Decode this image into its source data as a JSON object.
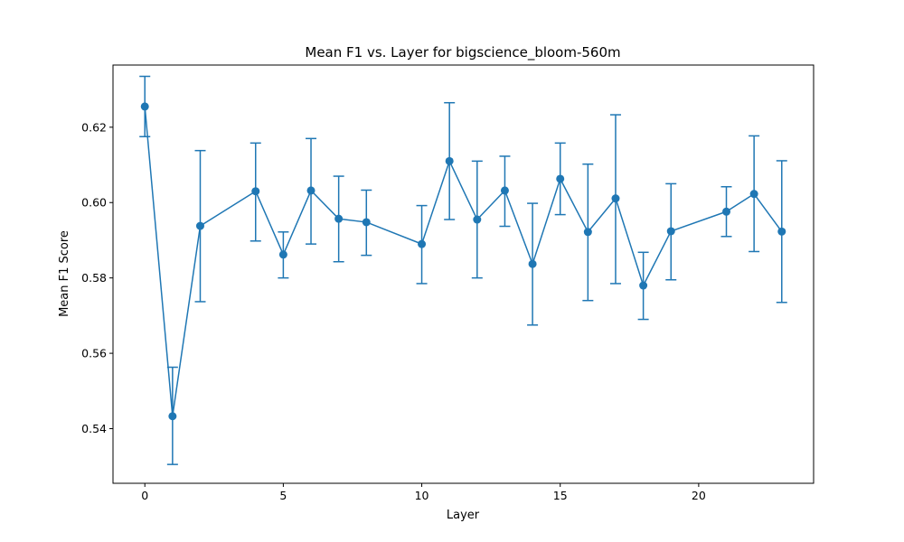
{
  "chart_data": {
    "type": "line",
    "title": "Mean F1 vs. Layer for bigscience_bloom-560m",
    "xlabel": "Layer",
    "ylabel": "Mean F1 Score",
    "xlim": [
      -1.15,
      24.15
    ],
    "ylim": [
      0.5255,
      0.6365
    ],
    "xticks": [
      0,
      5,
      10,
      15,
      20
    ],
    "yticks": [
      0.54,
      0.56,
      0.58,
      0.6,
      0.62
    ],
    "ytick_labels": [
      "0.54",
      "0.56",
      "0.58",
      "0.60",
      "0.62"
    ],
    "grid": false,
    "color": "#1f77b4",
    "series": [
      {
        "x": [
          0,
          1,
          2,
          4,
          5,
          6,
          7,
          8,
          10,
          11,
          12,
          13,
          14,
          15,
          16,
          17,
          18,
          19,
          21,
          22,
          23
        ],
        "y": [
          0.6255,
          0.5433,
          0.5938,
          0.603,
          0.5862,
          0.6032,
          0.5957,
          0.5948,
          0.589,
          0.611,
          0.5955,
          0.6032,
          0.5837,
          0.6063,
          0.5922,
          0.6011,
          0.578,
          0.5924,
          0.5976,
          0.6023,
          0.5923
        ],
        "y_low": [
          0.6175,
          0.5305,
          0.5737,
          0.5898,
          0.58,
          0.589,
          0.5843,
          0.586,
          0.5785,
          0.5955,
          0.58,
          0.5937,
          0.5675,
          0.5968,
          0.574,
          0.5785,
          0.569,
          0.5795,
          0.591,
          0.587,
          0.5735
        ],
        "y_high": [
          0.6335,
          0.5563,
          0.6138,
          0.6158,
          0.5922,
          0.617,
          0.607,
          0.6033,
          0.5992,
          0.6265,
          0.611,
          0.6123,
          0.5998,
          0.6158,
          0.6102,
          0.6233,
          0.5868,
          0.605,
          0.6042,
          0.6177,
          0.6111
        ]
      }
    ]
  }
}
